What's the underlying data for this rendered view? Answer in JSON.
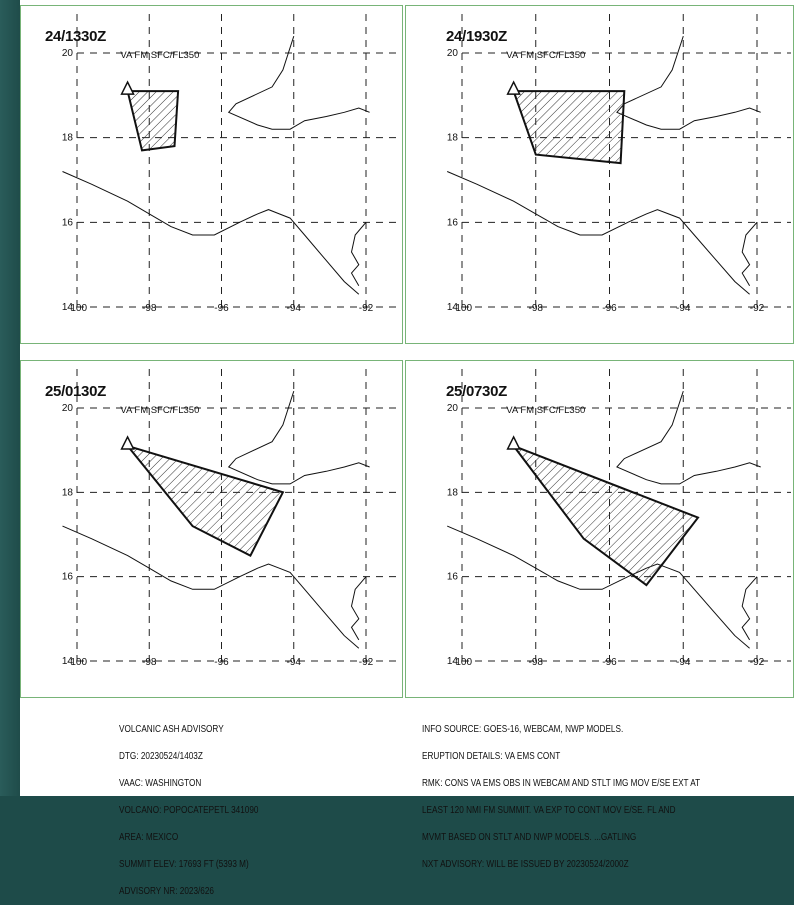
{
  "panels": [
    {
      "time": "24/1330Z",
      "label": "VA FM SFC/FL350",
      "poly": [
        [
          -98.6,
          19.1
        ],
        [
          -97.2,
          19.1
        ],
        [
          -97.3,
          17.8
        ],
        [
          -98.2,
          17.7
        ]
      ]
    },
    {
      "time": "24/1930Z",
      "label": "VA FM SFC/FL350",
      "poly": [
        [
          -98.6,
          19.1
        ],
        [
          -95.6,
          19.1
        ],
        [
          -95.7,
          17.4
        ],
        [
          -98.0,
          17.6
        ]
      ]
    },
    {
      "time": "25/0130Z",
      "label": "VA FM SFC/FL350",
      "poly": [
        [
          -98.6,
          19.1
        ],
        [
          -94.3,
          18.0
        ],
        [
          -95.2,
          16.5
        ],
        [
          -96.8,
          17.2
        ]
      ]
    },
    {
      "time": "25/0730Z",
      "label": "VA FM SFC/FL350",
      "poly": [
        [
          -98.6,
          19.1
        ],
        [
          -93.6,
          17.4
        ],
        [
          -95.0,
          15.8
        ],
        [
          -96.7,
          16.9
        ]
      ]
    }
  ],
  "axes": {
    "x_ticks": [
      "-100",
      "-98",
      "-96",
      "-94",
      "-92"
    ],
    "y_ticks": [
      "20",
      "18",
      "16",
      "14"
    ],
    "x_range": [
      -100,
      -92
    ],
    "y_range": [
      14,
      20
    ]
  },
  "left_text": [
    "VOLCANIC ASH ADVISORY",
    "DTG: 20230524/1403Z",
    "VAAC: WASHINGTON",
    "VOLCANO: POPOCATEPETL 341090",
    "AREA: MEXICO",
    "SUMMIT ELEV: 17693 FT (5393 M)",
    "ADVISORY NR: 2023/626"
  ],
  "right_text": [
    "INFO SOURCE: GOES-16, WEBCAM, NWP MODELS.",
    "ERUPTION DETAILS: VA EMS CONT",
    "RMK: CONS VA EMS OBS IN WEBCAM AND STLT IMG MOV E/SE EXT AT",
    "LEAST 120 NMI FM SUMMIT. VA EXP TO CONT MOV E/SE. FL AND",
    "MVMT BASED ON STLT AND NWP MODELS. ...GATLING",
    "NXT ADVISORY: WILL BE ISSUED BY 20230524/2000Z"
  ],
  "colors": {
    "frame": "#78b478",
    "ink": "#111111",
    "background": "#1e4b49"
  },
  "volcano_icon": "triangle-volcano-icon"
}
